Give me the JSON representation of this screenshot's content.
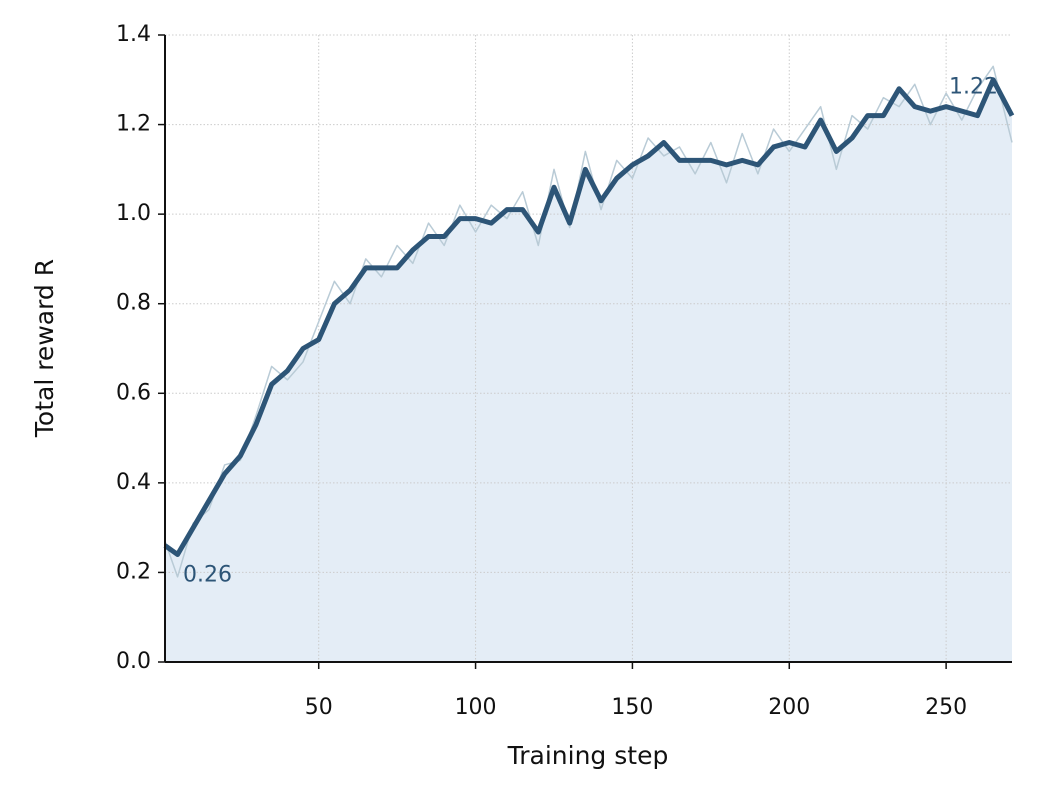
{
  "chart_data": {
    "type": "line",
    "xlabel": "Training step",
    "ylabel": "Total reward R",
    "x": [
      1,
      5,
      10,
      15,
      20,
      25,
      30,
      35,
      40,
      45,
      50,
      55,
      60,
      65,
      70,
      75,
      80,
      85,
      90,
      95,
      100,
      105,
      110,
      115,
      120,
      125,
      130,
      135,
      140,
      145,
      150,
      155,
      160,
      165,
      170,
      175,
      180,
      185,
      190,
      195,
      200,
      205,
      210,
      215,
      220,
      225,
      230,
      235,
      240,
      245,
      250,
      255,
      260,
      265,
      271
    ],
    "series": [
      {
        "color": "#b9cbd6",
        "values": [
          0.27,
          0.19,
          0.31,
          0.34,
          0.44,
          0.45,
          0.55,
          0.66,
          0.63,
          0.67,
          0.76,
          0.85,
          0.8,
          0.9,
          0.86,
          0.93,
          0.89,
          0.98,
          0.93,
          1.02,
          0.96,
          1.02,
          0.99,
          1.05,
          0.93,
          1.1,
          0.97,
          1.14,
          1.01,
          1.12,
          1.08,
          1.17,
          1.13,
          1.15,
          1.09,
          1.16,
          1.07,
          1.18,
          1.09,
          1.19,
          1.14,
          1.19,
          1.24,
          1.1,
          1.22,
          1.19,
          1.26,
          1.24,
          1.29,
          1.2,
          1.27,
          1.21,
          1.28,
          1.33,
          1.16
        ]
      },
      {
        "color": "#2d5577",
        "values": [
          0.26,
          0.24,
          0.3,
          0.36,
          0.42,
          0.46,
          0.53,
          0.62,
          0.65,
          0.7,
          0.72,
          0.8,
          0.83,
          0.88,
          0.88,
          0.88,
          0.92,
          0.95,
          0.95,
          0.99,
          0.99,
          0.98,
          1.01,
          1.01,
          0.96,
          1.06,
          0.98,
          1.1,
          1.03,
          1.08,
          1.11,
          1.13,
          1.16,
          1.12,
          1.12,
          1.12,
          1.11,
          1.12,
          1.11,
          1.15,
          1.16,
          1.15,
          1.21,
          1.14,
          1.17,
          1.22,
          1.22,
          1.28,
          1.24,
          1.23,
          1.24,
          1.23,
          1.22,
          1.3,
          1.22
        ]
      }
    ],
    "fill_color": "#e4edf6",
    "annotations": [
      "0.26",
      "1.22"
    ],
    "xlim": [
      1,
      271
    ],
    "xticks": [
      50,
      100,
      150,
      200,
      250
    ],
    "ylim": [
      0,
      1.4
    ],
    "yticks": [
      {
        "value": 0,
        "label": "0.0"
      },
      0.2,
      0.4,
      0.6,
      0.8,
      {
        "value": 1,
        "label": "1.0"
      },
      1.2,
      1.4
    ],
    "grid": true
  }
}
